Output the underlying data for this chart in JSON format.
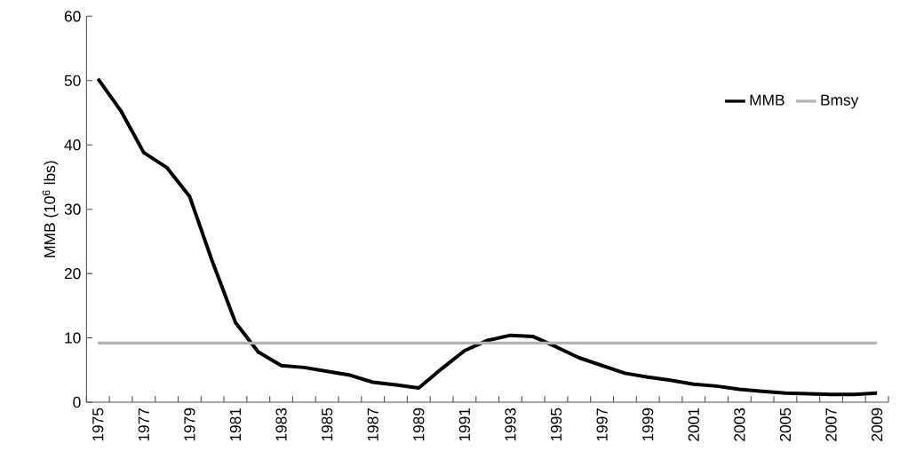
{
  "chart_data": {
    "type": "line",
    "ylabel": "MMB (10$^{6}$ lbs)",
    "categories": [
      "1975",
      null,
      "1977",
      null,
      "1979",
      null,
      "1981",
      null,
      "1983",
      null,
      "1985",
      null,
      "1987",
      null,
      "1989",
      null,
      "1991",
      null,
      "1993",
      null,
      "1995",
      null,
      "1997",
      null,
      "1999",
      null,
      "2001",
      null,
      "2003",
      null,
      "2005",
      null,
      "2007",
      null,
      "2009"
    ],
    "series": [
      {
        "name": "MMB",
        "color": "#000000",
        "values": [
          50.3,
          45.3,
          38.8,
          36.5,
          32.0,
          21.8,
          12.4,
          7.8,
          5.7,
          5.4,
          4.8,
          4.2,
          3.1,
          2.7,
          2.2,
          5.2,
          8.0,
          9.6,
          10.4,
          10.2,
          8.6,
          6.9,
          5.7,
          4.5,
          3.9,
          3.4,
          2.8,
          2.5,
          2.0,
          1.7,
          1.4,
          1.3,
          1.2,
          1.2,
          1.4
        ]
      }
    ],
    "ref_lines": [
      {
        "axis": "y",
        "value": 9.2,
        "label": "Bmsy",
        "color": "#b3b3b3"
      }
    ],
    "ylim": [
      0,
      60
    ],
    "yticks": [
      0,
      10,
      20,
      30,
      40,
      50,
      60
    ],
    "grid": false,
    "legend": "top right",
    "marker": "none",
    "line_style": "solid"
  }
}
